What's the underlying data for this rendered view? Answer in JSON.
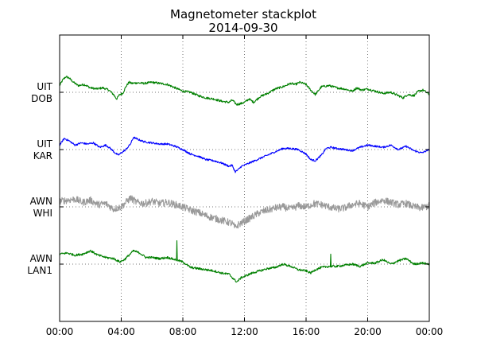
{
  "chart_data": {
    "type": "line",
    "title": "Magnetometer stackplot",
    "subtitle": "2014-09-30",
    "xlabel": "",
    "ylabel": "",
    "x_unit": "hours",
    "xlim": [
      0,
      24
    ],
    "x_tick_labels": [
      "00:00",
      "04:00",
      "08:00",
      "12:00",
      "16:00",
      "20:00",
      "00:00"
    ],
    "grid": true,
    "y_axis": "stack offsets, no numeric scale",
    "series": [
      {
        "label_lines": [
          "UIT",
          "DOB"
        ],
        "color": "#008000",
        "noise": 0.06,
        "x": [
          0,
          0.2,
          0.4,
          0.6,
          0.9,
          1.2,
          1.6,
          2.0,
          2.4,
          2.8,
          3.2,
          3.5,
          3.7,
          3.9,
          4.1,
          4.3,
          4.5,
          4.7,
          5.0,
          5.5,
          6.0,
          6.5,
          7.0,
          7.5,
          8.0,
          8.5,
          9.0,
          9.5,
          10.0,
          10.5,
          11.0,
          11.2,
          11.5,
          11.8,
          12.0,
          12.3,
          12.6,
          13.0,
          13.5,
          14.0,
          14.5,
          15.0,
          15.3,
          15.6,
          16.0,
          16.3,
          16.6,
          17.0,
          17.5,
          18.0,
          18.5,
          19.0,
          19.3,
          19.6,
          20.0,
          20.5,
          21.0,
          21.5,
          22.0,
          22.3,
          22.6,
          23.0,
          23.3,
          23.6,
          24.0
        ],
        "y": [
          0.6,
          1.1,
          1.4,
          1.3,
          0.9,
          0.6,
          0.7,
          0.4,
          0.3,
          0.4,
          0.2,
          -0.2,
          -0.6,
          -0.2,
          -0.1,
          0.5,
          0.9,
          0.8,
          0.85,
          0.8,
          0.9,
          0.8,
          0.7,
          0.4,
          0.1,
          0.0,
          -0.3,
          -0.5,
          -0.6,
          -0.8,
          -0.9,
          -0.7,
          -1.1,
          -1.0,
          -0.9,
          -0.6,
          -0.9,
          -0.4,
          -0.1,
          0.3,
          0.5,
          0.8,
          0.7,
          0.9,
          0.7,
          0.2,
          -0.2,
          0.5,
          0.6,
          0.4,
          0.3,
          0.1,
          0.4,
          0.2,
          0.3,
          0.1,
          -0.1,
          0.0,
          -0.3,
          -0.5,
          -0.2,
          -0.3,
          0.1,
          0.2,
          -0.2
        ]
      },
      {
        "label_lines": [
          "UIT",
          "KAR"
        ],
        "color": "#0000ff",
        "noise": 0.05,
        "x": [
          0,
          0.3,
          0.6,
          1.0,
          1.4,
          1.8,
          2.2,
          2.6,
          3.0,
          3.3,
          3.6,
          3.8,
          4.0,
          4.3,
          4.6,
          4.8,
          5.1,
          5.5,
          6.0,
          6.5,
          7.0,
          7.5,
          8.0,
          8.5,
          9.0,
          9.5,
          10.0,
          10.5,
          11.0,
          11.2,
          11.4,
          11.6,
          11.8,
          12.0,
          12.5,
          13.0,
          13.5,
          14.0,
          14.5,
          15.0,
          15.5,
          16.0,
          16.3,
          16.6,
          17.0,
          17.3,
          17.6,
          18.0,
          18.5,
          19.0,
          19.5,
          20.0,
          20.5,
          21.0,
          21.5,
          22.0,
          22.5,
          23.0,
          23.5,
          24.0
        ],
        "y": [
          0.4,
          1.0,
          0.8,
          0.4,
          0.6,
          0.5,
          0.6,
          0.2,
          0.4,
          0.1,
          -0.3,
          -0.5,
          -0.3,
          0.0,
          0.5,
          1.1,
          0.9,
          0.7,
          0.6,
          0.5,
          0.5,
          0.3,
          0.0,
          -0.4,
          -0.6,
          -0.9,
          -1.0,
          -1.2,
          -1.5,
          -1.4,
          -2.0,
          -1.8,
          -1.5,
          -1.4,
          -1.1,
          -0.8,
          -0.5,
          -0.2,
          0.1,
          0.1,
          0.0,
          -0.4,
          -0.9,
          -1.0,
          -0.5,
          0.1,
          0.2,
          0.1,
          0.0,
          -0.1,
          0.2,
          0.4,
          0.3,
          0.2,
          0.4,
          0.0,
          0.3,
          -0.1,
          -0.3,
          0.0
        ]
      },
      {
        "label_lines": [
          "AWN",
          "WHI"
        ],
        "color": "#999999",
        "noise": 0.2,
        "x": [
          0,
          0.5,
          1.0,
          1.5,
          2.0,
          2.5,
          3.0,
          3.5,
          4.0,
          4.3,
          4.6,
          5.0,
          5.5,
          6.0,
          6.5,
          7.0,
          7.5,
          8.0,
          8.5,
          9.0,
          9.5,
          10.0,
          10.5,
          11.0,
          11.2,
          11.4,
          11.6,
          12.0,
          12.5,
          13.0,
          13.5,
          14.0,
          14.5,
          15.0,
          15.5,
          16.0,
          16.5,
          17.0,
          17.5,
          18.0,
          18.5,
          19.0,
          19.5,
          20.0,
          20.5,
          21.0,
          21.5,
          22.0,
          22.5,
          23.0,
          23.5,
          24.0
        ],
        "y": [
          0.5,
          0.6,
          0.7,
          0.4,
          0.6,
          0.2,
          0.3,
          -0.2,
          0.0,
          0.4,
          0.8,
          0.4,
          0.3,
          0.5,
          0.3,
          0.4,
          0.2,
          0.0,
          -0.3,
          -0.5,
          -0.8,
          -1.0,
          -1.2,
          -1.4,
          -1.5,
          -1.9,
          -1.6,
          -1.3,
          -0.9,
          -0.5,
          -0.3,
          -0.1,
          0.0,
          -0.2,
          0.1,
          0.0,
          0.3,
          0.2,
          0.0,
          -0.2,
          -0.1,
          0.2,
          0.3,
          0.0,
          0.4,
          0.6,
          0.4,
          0.2,
          0.3,
          0.0,
          -0.1,
          0.1
        ]
      },
      {
        "label_lines": [
          "AWN",
          "LAN1"
        ],
        "color": "#008000",
        "noise": 0.06,
        "spikes": [
          {
            "x": 7.62,
            "y": 2.1
          },
          {
            "x": 17.6,
            "y": 0.9
          }
        ],
        "x": [
          0,
          0.5,
          1.0,
          1.5,
          2.0,
          2.5,
          3.0,
          3.5,
          3.9,
          4.2,
          4.5,
          4.8,
          5.2,
          5.6,
          6.0,
          6.5,
          7.0,
          7.5,
          8.0,
          8.5,
          9.0,
          9.5,
          10.0,
          10.5,
          11.0,
          11.2,
          11.5,
          11.8,
          12.0,
          12.5,
          13.0,
          13.5,
          14.0,
          14.5,
          15.0,
          15.5,
          16.0,
          16.3,
          16.6,
          17.0,
          17.5,
          18.0,
          18.5,
          19.0,
          19.5,
          20.0,
          20.5,
          21.0,
          21.5,
          22.0,
          22.5,
          23.0,
          23.5,
          24.0
        ],
        "y": [
          0.9,
          1.0,
          0.8,
          0.9,
          1.2,
          0.8,
          0.6,
          0.5,
          0.2,
          0.4,
          0.8,
          1.2,
          1.0,
          0.6,
          0.6,
          0.5,
          0.6,
          0.4,
          0.2,
          -0.3,
          -0.4,
          -0.5,
          -0.6,
          -0.8,
          -0.9,
          -1.2,
          -1.6,
          -1.2,
          -1.1,
          -0.8,
          -0.6,
          -0.4,
          -0.3,
          0.0,
          -0.2,
          -0.5,
          -0.6,
          -0.8,
          -0.5,
          -0.3,
          -0.2,
          -0.2,
          -0.1,
          0.0,
          -0.2,
          0.1,
          0.1,
          0.4,
          0.0,
          0.3,
          0.5,
          0.0,
          0.1,
          0.0
        ]
      }
    ]
  }
}
